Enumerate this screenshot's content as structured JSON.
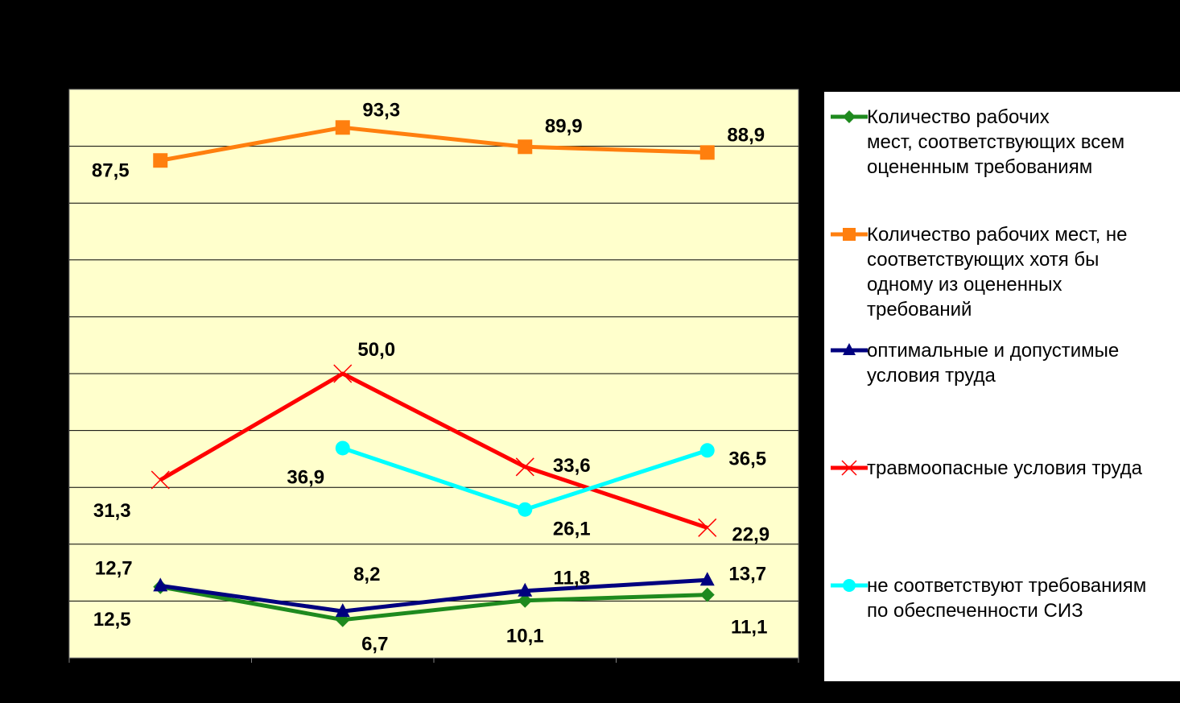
{
  "chart_data": {
    "type": "line",
    "categories": [
      "",
      "",
      "",
      ""
    ],
    "ylim": [
      0,
      100
    ],
    "grid": true,
    "legend_position": "right",
    "plot_background": "#ffffcc",
    "series": [
      {
        "name": "Количество рабочих мест, соответствующих всем оцененным требованиям",
        "legend_lines": [
          "Количество рабочих",
          "мест, соответствующих всем",
          "оцененным требованиям"
        ],
        "color": "#1e8a1e",
        "marker": "diamond",
        "values": [
          12.5,
          6.7,
          10.1,
          11.1
        ],
        "labels": [
          "12,5",
          "6,7",
          "10,1",
          "11,1"
        ]
      },
      {
        "name": "Количество рабочих мест, не соответствующих хотя бы одному из оцененных требований",
        "legend_lines": [
          "Количество рабочих мест, не",
          "соответствующих хотя бы",
          "одному из оцененных",
          "требований"
        ],
        "color": "#ff7f0e",
        "marker": "square",
        "values": [
          87.5,
          93.3,
          89.9,
          88.9
        ],
        "labels": [
          "87,5",
          "93,3",
          "89,9",
          "88,9"
        ]
      },
      {
        "name": "оптимальные и допустимые условия труда",
        "legend_lines": [
          "оптимальные и допустимые",
          "условия труда"
        ],
        "color": "#00007f",
        "marker": "triangle",
        "values": [
          12.7,
          8.2,
          11.8,
          13.7
        ],
        "labels": [
          "12,7",
          "8,2",
          "11,8",
          "13,7"
        ]
      },
      {
        "name": "травмоопасные условия труда",
        "legend_lines": [
          "травмоопасные условия труда"
        ],
        "color": "#ff0000",
        "marker": "x",
        "values": [
          31.3,
          50.0,
          33.6,
          22.9
        ],
        "labels": [
          "31,3",
          "50,0",
          "33,6",
          "22,9"
        ]
      },
      {
        "name": "не соответствуют требованиям по обеспеченности СИЗ",
        "legend_lines": [
          "не соответствуют требованиям",
          "по обеспеченности СИЗ"
        ],
        "color": "#00ffff",
        "marker": "circle",
        "values": [
          null,
          36.9,
          26.1,
          36.5
        ],
        "labels": [
          "",
          "36,9",
          "26,1",
          "36,5"
        ]
      }
    ]
  }
}
